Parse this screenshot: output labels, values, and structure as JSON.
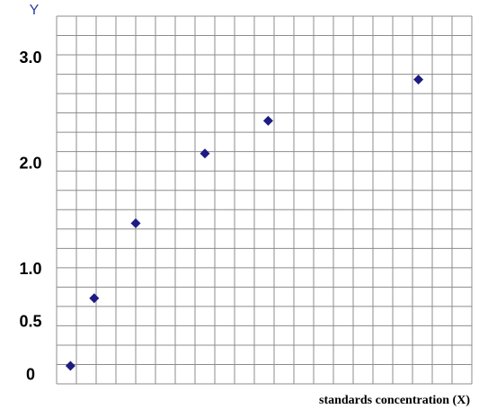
{
  "chart_data": {
    "type": "scatter",
    "ylabel": "Y",
    "xlabel": "standards concentration (X)",
    "x": [
      0.7,
      1.9,
      4,
      7.5,
      10.7,
      18.3
    ],
    "values": [
      0.09,
      0.73,
      1.44,
      2.1,
      2.41,
      2.8
    ],
    "color": "#1c1c84",
    "xlim": [
      0,
      21
    ],
    "ylim": [
      -0.08,
      3.4
    ],
    "yticks": [
      {
        "value": 3,
        "label": "3.0"
      },
      {
        "value": 2,
        "label": "2.0"
      },
      {
        "value": 1,
        "label": "1.0"
      },
      0.5,
      0
    ]
  }
}
